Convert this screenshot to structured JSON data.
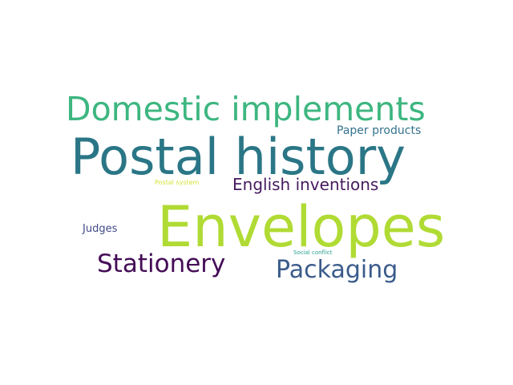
{
  "words": [
    {
      "id": "w-domestic",
      "text": "Domestic implements",
      "color": "#3db680"
    },
    {
      "id": "w-paper",
      "text": "Paper products",
      "color": "#33728e"
    },
    {
      "id": "w-postal",
      "text": "Postal history",
      "color": "#2a7686"
    },
    {
      "id": "w-postalsys",
      "text": "Postal system",
      "color": "#d6e23a"
    },
    {
      "id": "w-english",
      "text": "English inventions",
      "color": "#461a5e"
    },
    {
      "id": "w-envelopes",
      "text": "Envelopes",
      "color": "#b0db34"
    },
    {
      "id": "w-judges",
      "text": "Judges",
      "color": "#414a87"
    },
    {
      "id": "w-social",
      "text": "Social conflict",
      "color": "#2ba091"
    },
    {
      "id": "w-stationery",
      "text": "Stationery",
      "color": "#440c56"
    },
    {
      "id": "w-packaging",
      "text": "Packaging",
      "color": "#3a5b8b"
    }
  ]
}
